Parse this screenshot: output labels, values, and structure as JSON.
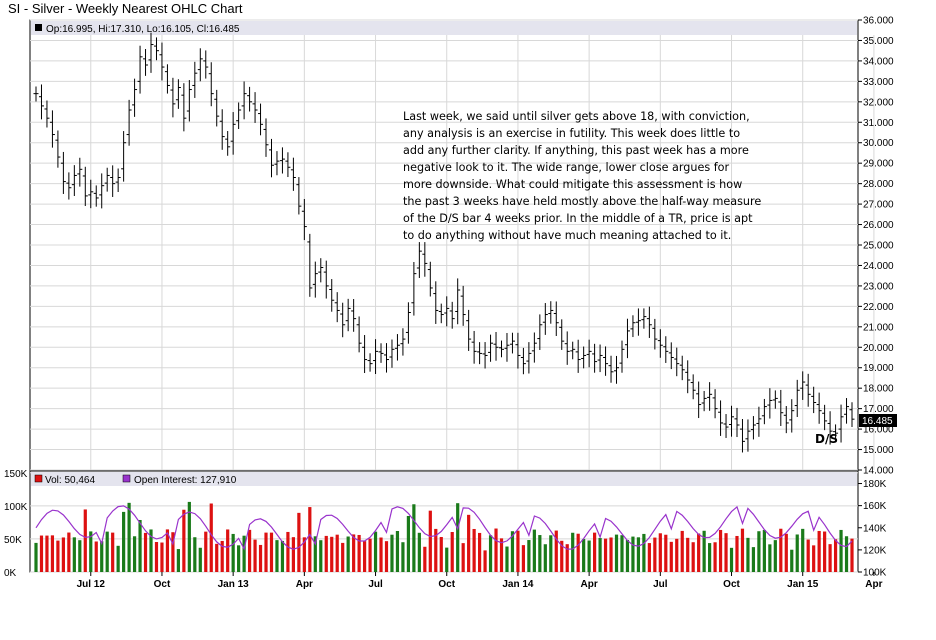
{
  "header": {
    "title": "SI - Silver - Weekly Nearest OHLC Chart",
    "ohlc_readout": "Op:16.995, Hi:17.310, Lo:16.105, Cl:16.485",
    "last_price_label": "16.485"
  },
  "annotation": {
    "lines": [
      "Last week, we said until silver gets above 18, with conviction,",
      "any analysis is an exercise in futility.  This week does little to",
      "add any further clarity.  If anything, this past week has a more",
      "negative look to it.  The wide range, lower close argues for",
      "more downside.  What could mitigate this assessment is how",
      "the past 3 weeks have held mostly above the half-way measure",
      "of the D/S  bar 4 weeks prior.  In the middle of a TR, price is apt",
      "to do anything without have much meaning attached to it."
    ],
    "ds_label": "D/S"
  },
  "volume_legend": {
    "vol_label": "Vol: 50,464",
    "oi_label": "Open Interest: 127,910"
  },
  "colors": {
    "up_volume": "#1a7a1a",
    "down_volume": "#dd1111",
    "open_interest": "#9933cc",
    "price_bar": "#000000",
    "grid": "#d8d8d8",
    "legend_band": "#e4e4ee"
  },
  "chart_data": [
    {
      "type": "ohlc",
      "title": "SI - Silver - Weekly Nearest OHLC Chart",
      "ylim": [
        14,
        36
      ],
      "y_ticks": [
        "14.000",
        "15.000",
        "16.000",
        "17.000",
        "18.000",
        "19.000",
        "20.000",
        "21.000",
        "22.000",
        "23.000",
        "24.000",
        "25.000",
        "26.000",
        "27.000",
        "28.000",
        "29.000",
        "30.000",
        "31.000",
        "32.000",
        "33.000",
        "34.000",
        "35.000",
        "36.000"
      ],
      "x_ticks": [
        {
          "label": "Jul 12",
          "week": 10
        },
        {
          "label": "Oct",
          "week": 23
        },
        {
          "label": "Jan 13",
          "week": 36
        },
        {
          "label": "Apr",
          "week": 49
        },
        {
          "label": "Jul",
          "week": 62
        },
        {
          "label": "Oct",
          "week": 75
        },
        {
          "label": "Jan 14",
          "week": 88
        },
        {
          "label": "Apr",
          "week": 101
        },
        {
          "label": "Jul",
          "week": 114
        },
        {
          "label": "Oct",
          "week": 127
        },
        {
          "label": "Jan 15",
          "week": 140
        },
        {
          "label": "Apr",
          "week": 153
        }
      ],
      "grid": true,
      "closes": [
        32.4,
        31.8,
        31.2,
        30.4,
        29.3,
        28.1,
        27.8,
        28.4,
        28.7,
        27.4,
        27.6,
        27.3,
        27.9,
        28.4,
        28.0,
        28.3,
        30.0,
        31.6,
        32.6,
        34.2,
        33.8,
        34.8,
        34.5,
        33.7,
        32.8,
        31.9,
        32.7,
        31.2,
        32.6,
        33.4,
        34.1,
        33.7,
        32.4,
        31.3,
        30.3,
        29.8,
        30.9,
        31.6,
        32.4,
        32.0,
        31.6,
        30.9,
        29.9,
        28.9,
        29.1,
        29.2,
        28.8,
        28.3,
        26.9,
        25.9,
        22.9,
        23.6,
        23.9,
        23.0,
        22.3,
        21.8,
        21.1,
        21.9,
        21.4,
        20.2,
        19.4,
        19.2,
        19.8,
        19.7,
        19.4,
        19.9,
        20.1,
        20.4,
        21.7,
        23.6,
        24.7,
        24.1,
        22.9,
        21.8,
        21.6,
        21.9,
        21.4,
        22.8,
        21.6,
        20.4,
        19.8,
        19.7,
        19.6,
        20.2,
        20.0,
        19.9,
        20.1,
        20.3,
        19.6,
        19.2,
        19.7,
        20.2,
        21.1,
        21.6,
        21.8,
        21.2,
        20.3,
        19.8,
        19.9,
        19.4,
        19.6,
        19.8,
        19.3,
        19.6,
        19.2,
        18.8,
        19.0,
        19.9,
        20.8,
        21.2,
        21.3,
        21.5,
        21.1,
        20.4,
        20.1,
        19.8,
        19.5,
        19.2,
        18.9,
        18.4,
        17.9,
        17.2,
        17.5,
        17.7,
        17.0,
        16.3,
        16.1,
        16.6,
        16.2,
        15.4,
        15.9,
        16.2,
        16.5,
        17.1,
        17.4,
        17.5,
        16.8,
        16.3,
        16.9,
        17.9,
        18.3,
        17.7,
        17.3,
        16.9,
        16.4,
        15.9,
        15.8,
        16.6,
        17.1,
        16.485
      ]
    },
    {
      "type": "bar",
      "title": "Volume",
      "ylim": [
        0,
        130000
      ],
      "y_ticks": [
        "0K",
        "50K",
        "100K",
        "150K"
      ],
      "oi_ylim": [
        100000,
        185000
      ],
      "oi_ticks": [
        "100K",
        "120K",
        "140K",
        "160K",
        "180K"
      ],
      "series": [
        {
          "name": "Vol: 50,464"
        },
        {
          "name": "Open Interest: 127,910"
        }
      ],
      "last_volume": 50464,
      "last_open_interest": 127910
    }
  ]
}
